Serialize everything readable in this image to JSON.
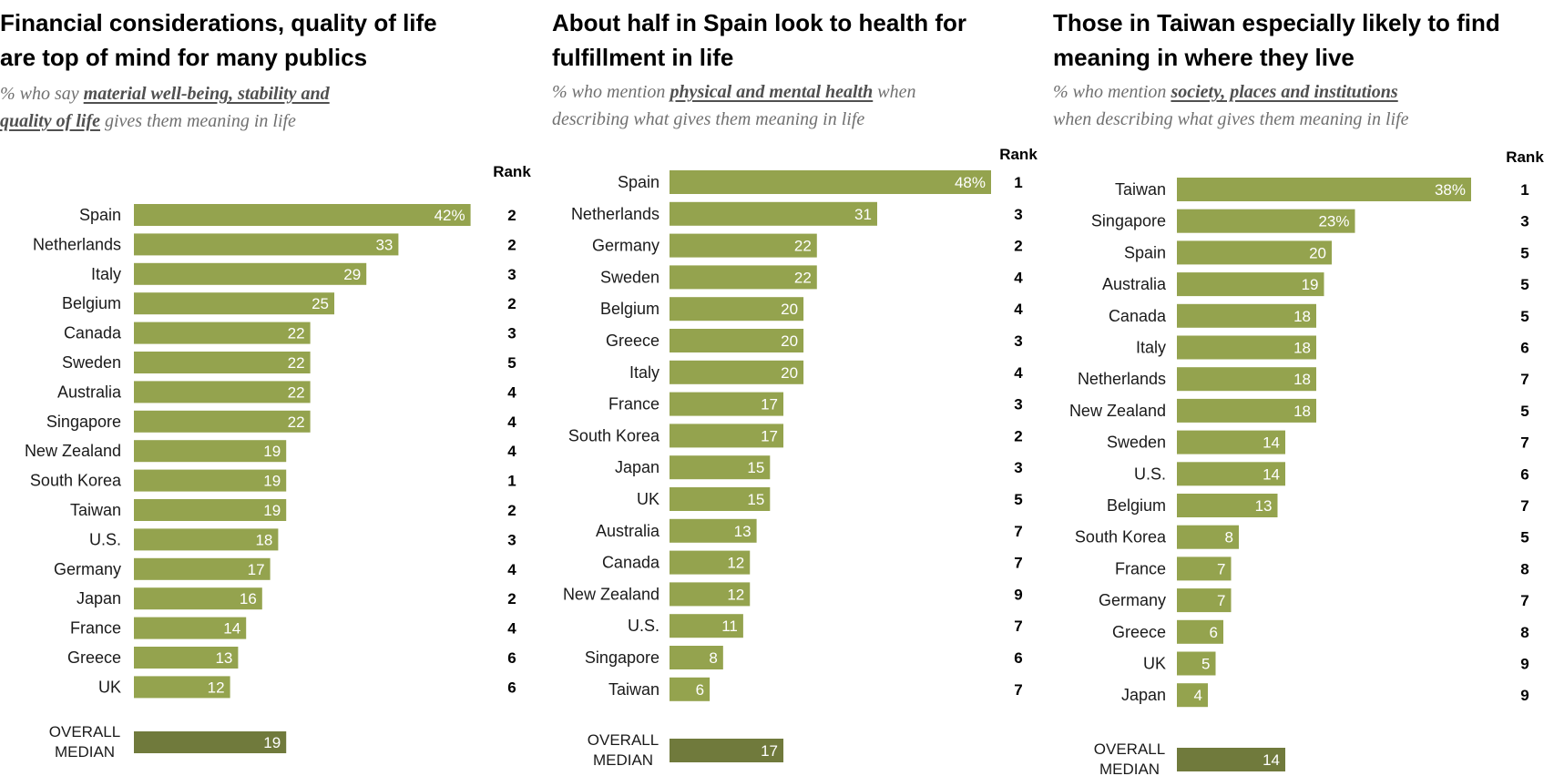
{
  "colors": {
    "bar": "#94a34e",
    "median_bar": "#707a3c",
    "label_on_bar": "#ffffff",
    "country": "#1a1a1a",
    "rank": "#000000",
    "subtitle": "#707070"
  },
  "panels": [
    {
      "title_lines": [
        "Financial considerations, quality of life",
        "are top of mind for many publics"
      ],
      "subtitle": {
        "line1_pre": "% who say ",
        "line1_em": "material well-being, stability and",
        "line2_em": "quality of life",
        "line2_post": " gives them meaning in life"
      },
      "rank_header": "Rank",
      "median_label_lines": [
        "OVERALL",
        "MEDIAN"
      ]
    },
    {
      "title_lines": [
        "About half in Spain look to health for",
        "fulfillment in life"
      ],
      "subtitle": {
        "line1_pre": "% who mention ",
        "line1_em": "physical and mental health",
        "line1_post": " when",
        "line2_post": "describing what gives them meaning in life"
      },
      "rank_header": "Rank",
      "median_label_lines": [
        "OVERALL",
        "MEDIAN"
      ]
    },
    {
      "title_lines": [
        "Those in Taiwan especially likely to find",
        "meaning in where they live"
      ],
      "subtitle": {
        "line1_pre": "% who mention ",
        "line1_em": "society, places and institutions",
        "line2_post": "when describing what gives them meaning in life"
      },
      "rank_header": "Rank",
      "median_label_lines": [
        "OVERALL",
        "MEDIAN"
      ]
    }
  ],
  "chart_data": [
    {
      "type": "bar",
      "orientation": "horizontal",
      "title": "Financial considerations, quality of life are top of mind for many publics",
      "categories": [
        "Spain",
        "Netherlands",
        "Italy",
        "Belgium",
        "Canada",
        "Sweden",
        "Australia",
        "Singapore",
        "New Zealand",
        "South Korea",
        "Taiwan",
        "U.S.",
        "Germany",
        "Japan",
        "France",
        "Greece",
        "UK"
      ],
      "values": [
        42,
        33,
        29,
        25,
        22,
        22,
        22,
        22,
        19,
        19,
        19,
        18,
        17,
        16,
        14,
        13,
        12
      ],
      "value_labels": [
        "42%",
        "33",
        "29",
        "25",
        "22",
        "22",
        "22",
        "22",
        "19",
        "19",
        "19",
        "18",
        "17",
        "16",
        "14",
        "13",
        "12"
      ],
      "rank": [
        "2",
        "2",
        "3",
        "2",
        "3",
        "5",
        "4",
        "4",
        "4",
        "1",
        "2",
        "3",
        "4",
        "2",
        "4",
        "6",
        "6"
      ],
      "median": {
        "value": 19,
        "label": "19"
      },
      "xlim": [
        0,
        45
      ]
    },
    {
      "type": "bar",
      "orientation": "horizontal",
      "title": "About half in Spain look to health for fulfillment in life",
      "categories": [
        "Spain",
        "Netherlands",
        "Germany",
        "Sweden",
        "Belgium",
        "Greece",
        "Italy",
        "France",
        "South Korea",
        "Japan",
        "UK",
        "Australia",
        "Canada",
        "New Zealand",
        "U.S.",
        "Singapore",
        "Taiwan"
      ],
      "values": [
        48,
        31,
        22,
        22,
        20,
        20,
        20,
        17,
        17,
        15,
        15,
        13,
        12,
        12,
        11,
        8,
        6
      ],
      "value_labels": [
        "48%",
        "31",
        "22",
        "22",
        "20",
        "20",
        "20",
        "17",
        "17",
        "15",
        "15",
        "13",
        "12",
        "12",
        "11",
        "8",
        "6"
      ],
      "rank": [
        "1",
        "3",
        "2",
        "4",
        "4",
        "3",
        "4",
        "3",
        "2",
        "3",
        "5",
        "7",
        "7",
        "9",
        "7",
        "6",
        "7"
      ],
      "median": {
        "value": 17,
        "label": "17"
      },
      "xlim": [
        0,
        48
      ]
    },
    {
      "type": "bar",
      "orientation": "horizontal",
      "title": "Those in Taiwan especially likely to find meaning in where they live",
      "categories": [
        "Taiwan",
        "Singapore",
        "Spain",
        "Australia",
        "Canada",
        "Italy",
        "Netherlands",
        "New Zealand",
        "Sweden",
        "U.S.",
        "Belgium",
        "South Korea",
        "France",
        "Germany",
        "Greece",
        "UK",
        "Japan"
      ],
      "values": [
        38,
        23,
        20,
        19,
        18,
        18,
        18,
        18,
        14,
        14,
        13,
        8,
        7,
        7,
        6,
        5,
        4
      ],
      "value_labels": [
        "38%",
        "23%",
        "20",
        "19",
        "18",
        "18",
        "18",
        "18",
        "14",
        "14",
        "13",
        "8",
        "7",
        "7",
        "6",
        "5",
        "4"
      ],
      "rank": [
        "1",
        "3",
        "5",
        "5",
        "5",
        "6",
        "7",
        "5",
        "7",
        "6",
        "7",
        "5",
        "8",
        "7",
        "8",
        "9",
        "9"
      ],
      "median": {
        "value": 14,
        "label": "14"
      },
      "xlim": [
        0,
        38
      ]
    }
  ]
}
